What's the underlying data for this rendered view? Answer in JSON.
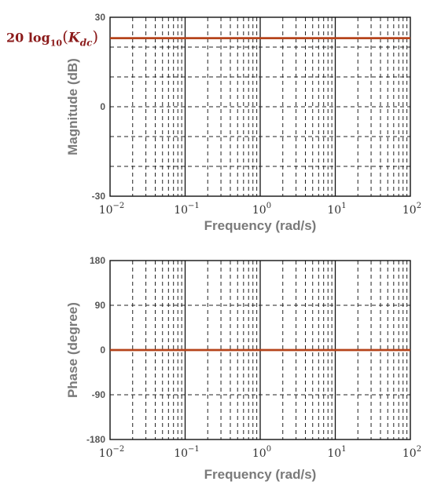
{
  "chart_data": [
    {
      "type": "line",
      "panel": "magnitude",
      "xlabel": "Frequency  (rad/s)",
      "ylabel": "Magnitude (dB)",
      "xscale": "log",
      "xlim": [
        0.01,
        100
      ],
      "ylim": [
        -30,
        30
      ],
      "yticks": [
        -30,
        -20,
        -10,
        0,
        10,
        20,
        30
      ],
      "ytick_labels": [
        "-30",
        "0",
        "30"
      ],
      "xtick_labels": [
        {
          "base": "10",
          "exp": "−2"
        },
        {
          "base": "10",
          "exp": "−1"
        },
        {
          "base": "10",
          "exp": "0"
        },
        {
          "base": "10",
          "exp": "1"
        },
        {
          "base": "10",
          "exp": "2"
        }
      ],
      "grid": true,
      "series": [
        {
          "x": [
            0.01,
            100
          ],
          "y": [
            23,
            23
          ],
          "color": "#b5441b"
        }
      ],
      "annotation": {
        "text_main": "20 log",
        "sub": "10",
        "open": "(",
        "var": "K",
        "var_sub": "dc",
        "close": ")"
      }
    },
    {
      "type": "line",
      "panel": "phase",
      "xlabel": "Frequency  (rad/s)",
      "ylabel": "Phase (degree)",
      "xscale": "log",
      "xlim": [
        0.01,
        100
      ],
      "ylim": [
        -180,
        180
      ],
      "yticks": [
        -180,
        -90,
        0,
        90,
        180
      ],
      "ytick_labels": [
        "-180",
        "-90",
        "0",
        "90",
        "180"
      ],
      "xtick_labels": [
        {
          "base": "10",
          "exp": "−2"
        },
        {
          "base": "10",
          "exp": "−1"
        },
        {
          "base": "10",
          "exp": "0"
        },
        {
          "base": "10",
          "exp": "1"
        },
        {
          "base": "10",
          "exp": "2"
        }
      ],
      "grid": true,
      "series": [
        {
          "x": [
            0.01,
            100
          ],
          "y": [
            0,
            0
          ],
          "color": "#b5441b"
        }
      ]
    }
  ]
}
